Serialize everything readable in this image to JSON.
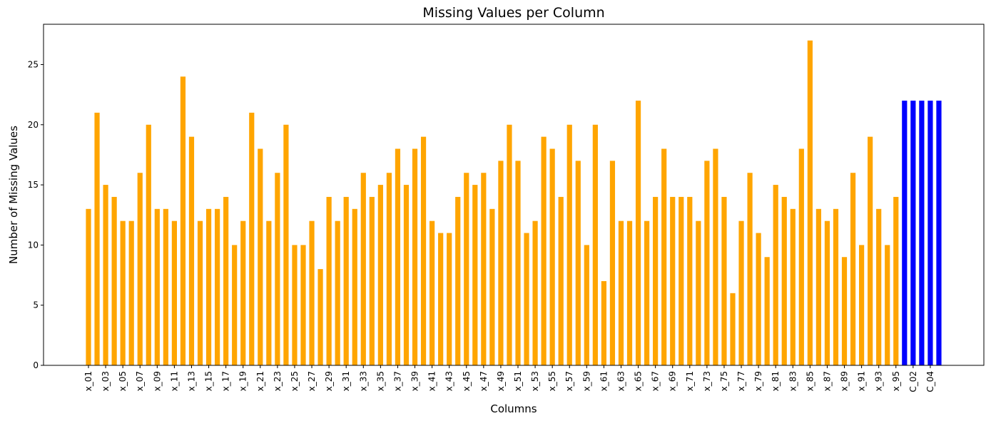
{
  "chart_data": {
    "type": "bar",
    "title": "Missing Values per Column",
    "xlabel": "Columns",
    "ylabel": "Number of Missing Values",
    "categories": [
      "x_01",
      null,
      "x_03",
      null,
      "x_05",
      null,
      "x_07",
      null,
      "x_09",
      null,
      "x_11",
      null,
      "x_13",
      null,
      "x_15",
      null,
      "x_17",
      null,
      "x_19",
      null,
      "x_21",
      null,
      "x_23",
      null,
      "x_25",
      null,
      "x_27",
      null,
      "x_29",
      null,
      "x_31",
      null,
      "x_33",
      null,
      "x_35",
      null,
      "x_37",
      null,
      "x_39",
      null,
      "x_41",
      null,
      "x_43",
      null,
      "x_45",
      null,
      "x_47",
      null,
      "x_49",
      null,
      "x_51",
      null,
      "x_53",
      null,
      "x_55",
      null,
      "x_57",
      null,
      "x_59",
      null,
      "x_61",
      null,
      "x_63",
      null,
      "x_65",
      null,
      "x_67",
      null,
      "x_69",
      null,
      "x_71",
      null,
      "x_73",
      null,
      "x_75",
      null,
      "x_77",
      null,
      "x_79",
      null,
      "x_81",
      null,
      "x_83",
      null,
      "x_85",
      null,
      "x_87",
      null,
      "x_89",
      null,
      "x_91",
      null,
      "x_93",
      null,
      "x_95",
      null,
      "C_02",
      null,
      "C_04",
      null
    ],
    "values": [
      13,
      21,
      15,
      14,
      12,
      12,
      16,
      20,
      13,
      13,
      12,
      24,
      19,
      12,
      13,
      13,
      14,
      10,
      12,
      21,
      18,
      12,
      16,
      20,
      10,
      10,
      12,
      8,
      14,
      12,
      14,
      13,
      16,
      14,
      15,
      16,
      18,
      15,
      18,
      19,
      12,
      11,
      11,
      14,
      16,
      15,
      16,
      13,
      17,
      20,
      17,
      11,
      12,
      19,
      18,
      14,
      20,
      17,
      10,
      20,
      7,
      17,
      12,
      12,
      22,
      12,
      14,
      18,
      14,
      14,
      14,
      12,
      17,
      18,
      14,
      6,
      12,
      16,
      11,
      9,
      15,
      14,
      13,
      18,
      27,
      13,
      12,
      13,
      9,
      16,
      10,
      19,
      13,
      10,
      14,
      22,
      22,
      22,
      22,
      22
    ],
    "colors": [
      "orange",
      "orange",
      "orange",
      "orange",
      "orange",
      "orange",
      "orange",
      "orange",
      "orange",
      "orange",
      "orange",
      "orange",
      "orange",
      "orange",
      "orange",
      "orange",
      "orange",
      "orange",
      "orange",
      "orange",
      "orange",
      "orange",
      "orange",
      "orange",
      "orange",
      "orange",
      "orange",
      "orange",
      "orange",
      "orange",
      "orange",
      "orange",
      "orange",
      "orange",
      "orange",
      "orange",
      "orange",
      "orange",
      "orange",
      "orange",
      "orange",
      "orange",
      "orange",
      "orange",
      "orange",
      "orange",
      "orange",
      "orange",
      "orange",
      "orange",
      "orange",
      "orange",
      "orange",
      "orange",
      "orange",
      "orange",
      "orange",
      "orange",
      "orange",
      "orange",
      "orange",
      "orange",
      "orange",
      "orange",
      "orange",
      "orange",
      "orange",
      "orange",
      "orange",
      "orange",
      "orange",
      "orange",
      "orange",
      "orange",
      "orange",
      "orange",
      "orange",
      "orange",
      "orange",
      "orange",
      "orange",
      "orange",
      "orange",
      "orange",
      "orange",
      "orange",
      "orange",
      "orange",
      "orange",
      "orange",
      "orange",
      "orange",
      "orange",
      "orange",
      "orange",
      "blue",
      "blue",
      "blue",
      "blue",
      "blue"
    ],
    "ylim": [
      0,
      28.35
    ],
    "yticks": [
      0,
      5,
      10,
      15,
      20,
      25
    ],
    "grid": false
  }
}
